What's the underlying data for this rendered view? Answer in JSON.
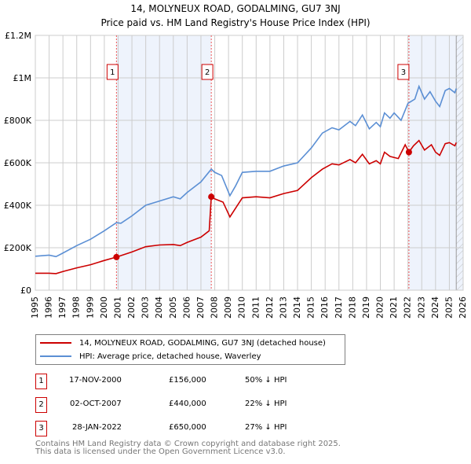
{
  "chart_data": {
    "type": "line",
    "title": "14, MOLYNEUX ROAD, GODALMING, GU7 3NJ",
    "subtitle": "Price paid vs. HM Land Registry's House Price Index (HPI)",
    "xlim": [
      1995,
      2026
    ],
    "ylim": [
      0,
      1200000
    ],
    "y_ticks": [
      {
        "v": 0,
        "label": "£0"
      },
      {
        "v": 200000,
        "label": "£200K"
      },
      {
        "v": 400000,
        "label": "£400K"
      },
      {
        "v": 600000,
        "label": "£600K"
      },
      {
        "v": 800000,
        "label": "£800K"
      },
      {
        "v": 1000000,
        "label": "£1M"
      },
      {
        "v": 1200000,
        "label": "£1.2M"
      }
    ],
    "x_ticks": [
      "1995",
      "1996",
      "1997",
      "1998",
      "1999",
      "2000",
      "2001",
      "2002",
      "2003",
      "2004",
      "2005",
      "2006",
      "2007",
      "2008",
      "2009",
      "2010",
      "2011",
      "2012",
      "2013",
      "2014",
      "2015",
      "2016",
      "2017",
      "2018",
      "2019",
      "2020",
      "2021",
      "2022",
      "2023",
      "2024",
      "2025",
      "2026"
    ],
    "grid": true,
    "shaded_ranges": [
      [
        2000.88,
        2007.75
      ],
      [
        2022.07,
        2026
      ]
    ],
    "hatched_from": 2025.5,
    "series": [
      {
        "name": "14, MOLYNEUX ROAD, GODALMING, GU7 3NJ (detached house)",
        "color": "#cc0000",
        "x": [
          1995,
          1996,
          1996.5,
          1997,
          1998,
          1999,
          2000,
          2000.88,
          2002,
          2003,
          2004,
          2005,
          2005.5,
          2006,
          2007,
          2007.6,
          2007.75,
          2008,
          2008.6,
          2009.1,
          2009.6,
          2010,
          2011,
          2012,
          2013,
          2014,
          2015,
          2015.8,
          2016.5,
          2017,
          2017.8,
          2018.2,
          2018.7,
          2019.2,
          2019.7,
          2020,
          2020.3,
          2020.7,
          2021.3,
          2021.8,
          2022.07,
          2022.4,
          2022.8,
          2023.2,
          2023.7,
          2024,
          2024.3,
          2024.7,
          2025,
          2025.4,
          2025.5
        ],
        "y": [
          80000,
          80000,
          78000,
          88000,
          105000,
          120000,
          140000,
          156000,
          180000,
          205000,
          213000,
          215000,
          210000,
          225000,
          250000,
          280000,
          440000,
          430000,
          415000,
          345000,
          395000,
          435000,
          440000,
          435000,
          455000,
          470000,
          530000,
          570000,
          595000,
          590000,
          615000,
          600000,
          640000,
          595000,
          610000,
          595000,
          650000,
          630000,
          620000,
          685000,
          650000,
          680000,
          705000,
          660000,
          685000,
          650000,
          635000,
          690000,
          695000,
          680000,
          695000
        ]
      },
      {
        "name": "HPI: Average price, detached house, Waverley",
        "color": "#5b8fd4",
        "x": [
          1995,
          1996,
          1996.5,
          1997,
          1998,
          1999,
          2000,
          2000.88,
          2001.2,
          2002,
          2003,
          2004,
          2005,
          2005.5,
          2006,
          2007,
          2007.75,
          2008,
          2008.5,
          2009.1,
          2009.5,
          2010,
          2011,
          2012,
          2013,
          2014,
          2015,
          2015.8,
          2016.5,
          2017,
          2017.8,
          2018.2,
          2018.7,
          2019.2,
          2019.7,
          2020,
          2020.3,
          2020.7,
          2021,
          2021.5,
          2022,
          2022.5,
          2022.8,
          2023.2,
          2023.6,
          2024,
          2024.3,
          2024.7,
          2025,
          2025.4,
          2025.5
        ],
        "y": [
          160000,
          165000,
          158000,
          175000,
          210000,
          240000,
          280000,
          318000,
          315000,
          350000,
          400000,
          420000,
          440000,
          430000,
          460000,
          510000,
          570000,
          555000,
          540000,
          445000,
          490000,
          555000,
          560000,
          560000,
          585000,
          600000,
          670000,
          740000,
          765000,
          755000,
          795000,
          775000,
          825000,
          760000,
          790000,
          770000,
          835000,
          810000,
          835000,
          800000,
          880000,
          900000,
          960000,
          900000,
          935000,
          890000,
          865000,
          940000,
          950000,
          930000,
          950000
        ]
      }
    ],
    "sales": [
      {
        "label": "1",
        "x": 2000.88,
        "y": 156000,
        "date": "17-NOV-2000",
        "price": "£156,000",
        "hpi": "50% ↓ HPI"
      },
      {
        "label": "2",
        "x": 2007.75,
        "y": 440000,
        "date": "02-OCT-2007",
        "price": "£440,000",
        "hpi": "22% ↓ HPI"
      },
      {
        "label": "3",
        "x": 2022.07,
        "y": 650000,
        "date": "28-JAN-2022",
        "price": "£650,000",
        "hpi": "27% ↓ HPI"
      }
    ]
  },
  "footer": {
    "line1": "Contains HM Land Registry data © Crown copyright and database right 2025.",
    "line2": "This data is licensed under the Open Government Licence v3.0."
  }
}
